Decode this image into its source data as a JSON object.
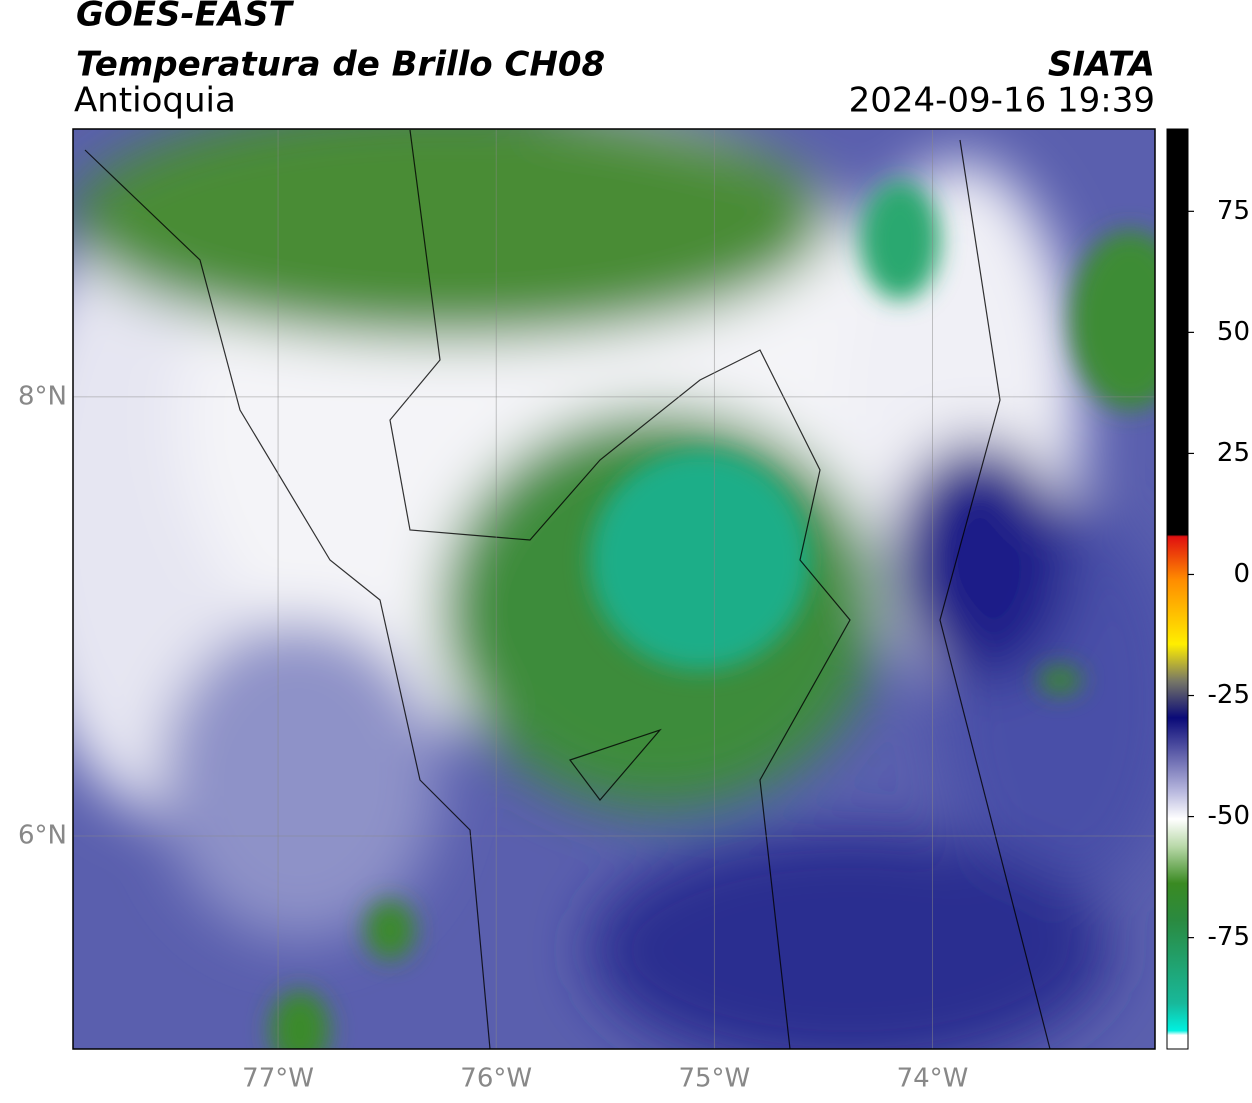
{
  "header": {
    "title": "GOES-EAST",
    "subtitle": "Temperatura de Brillo CH08",
    "region": "Antioquia",
    "source": "SIATA",
    "datetime": "2024-09-16 19:39"
  },
  "map": {
    "xlim": [
      -77.94,
      -72.98
    ],
    "ylim": [
      5.03,
      9.22
    ],
    "grid": true,
    "xticks": [
      {
        "value": -77,
        "label": "77°W"
      },
      {
        "value": -76,
        "label": "76°W"
      },
      {
        "value": -75,
        "label": "75°W"
      },
      {
        "value": -74,
        "label": "74°W"
      }
    ],
    "yticks": [
      {
        "value": 6,
        "label": "6°N"
      },
      {
        "value": 8,
        "label": "8°N"
      }
    ]
  },
  "colorbar": {
    "lim": [
      -98,
      92
    ],
    "ticks": [
      -75,
      -50,
      -25,
      0,
      25,
      50,
      75
    ]
  }
}
